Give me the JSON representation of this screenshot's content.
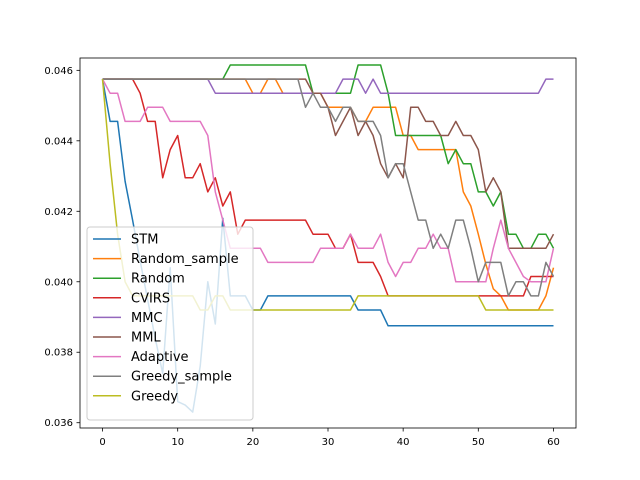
{
  "chart_data": {
    "type": "line",
    "title": "",
    "xlabel": "",
    "ylabel": "",
    "xlim": [
      -3,
      63
    ],
    "ylim": [
      0.03585,
      0.04635
    ],
    "xticks": [
      0,
      10,
      20,
      30,
      40,
      50,
      60
    ],
    "yticks": [
      0.036,
      0.038,
      0.04,
      0.042,
      0.044,
      0.046
    ],
    "ytick_labels": [
      "0.036",
      "0.038",
      "0.040",
      "0.042",
      "0.044",
      "0.046"
    ],
    "legend_position": "lower-left",
    "x": [
      0,
      1,
      2,
      3,
      4,
      5,
      6,
      7,
      8,
      9,
      10,
      11,
      12,
      13,
      14,
      15,
      16,
      17,
      18,
      19,
      20,
      21,
      22,
      23,
      24,
      25,
      26,
      27,
      28,
      29,
      30,
      31,
      32,
      33,
      34,
      35,
      36,
      37,
      38,
      39,
      40,
      41,
      42,
      43,
      44,
      45,
      46,
      47,
      48,
      49,
      50,
      51,
      52,
      53,
      54,
      55,
      56,
      57,
      58,
      59,
      60
    ],
    "series": [
      {
        "name": "STM",
        "color": "#1f77b4",
        "values": [
          0.04575,
          0.04455,
          0.04455,
          0.04285,
          0.04175,
          0.0406,
          0.0395,
          0.0384,
          0.0374,
          0.0404,
          0.0366,
          0.0365,
          0.0363,
          0.0376,
          0.04,
          0.0388,
          0.0418,
          0.0396,
          0.0396,
          0.0396,
          0.0392,
          0.0392,
          0.0396,
          0.0396,
          0.0396,
          0.0396,
          0.0396,
          0.0396,
          0.0396,
          0.0396,
          0.0396,
          0.0396,
          0.0396,
          0.0396,
          0.0392,
          0.0392,
          0.0392,
          0.0392,
          0.03875,
          0.03875,
          0.03875,
          0.03875,
          0.03875,
          0.03875,
          0.03875,
          0.03875,
          0.03875,
          0.03875,
          0.03875,
          0.03875,
          0.03875,
          0.03875,
          0.03875,
          0.03875,
          0.03875,
          0.03875,
          0.03875,
          0.03875,
          0.03875,
          0.03875,
          0.03875
        ]
      },
      {
        "name": "Random_sample",
        "color": "#ff7f0e",
        "values": [
          0.04575,
          0.04575,
          0.04575,
          0.04575,
          0.04575,
          0.04575,
          0.04575,
          0.04575,
          0.04575,
          0.04575,
          0.04575,
          0.04575,
          0.04575,
          0.04575,
          0.04575,
          0.04575,
          0.04575,
          0.04575,
          0.04575,
          0.04575,
          0.04535,
          0.04535,
          0.04575,
          0.04575,
          0.04535,
          0.04535,
          0.04535,
          0.04535,
          0.04535,
          0.04535,
          0.04495,
          0.04495,
          0.04495,
          0.04495,
          0.04455,
          0.04455,
          0.04495,
          0.04495,
          0.04495,
          0.04495,
          0.04415,
          0.04415,
          0.04375,
          0.04375,
          0.04375,
          0.04375,
          0.04375,
          0.04375,
          0.04255,
          0.04215,
          0.04135,
          0.0405,
          0.0398,
          0.0396,
          0.0392,
          0.0392,
          0.0392,
          0.0392,
          0.0392,
          0.0396,
          0.0404
        ]
      },
      {
        "name": "Random",
        "color": "#2ca02c",
        "values": [
          0.04575,
          0.04575,
          0.04575,
          0.04575,
          0.04575,
          0.04575,
          0.04575,
          0.04575,
          0.04575,
          0.04575,
          0.04575,
          0.04575,
          0.04575,
          0.04575,
          0.04575,
          0.04575,
          0.04575,
          0.04615,
          0.04615,
          0.04615,
          0.04615,
          0.04615,
          0.04615,
          0.04615,
          0.04615,
          0.04615,
          0.04615,
          0.04615,
          0.04535,
          0.04535,
          0.04535,
          0.04535,
          0.04535,
          0.04535,
          0.04615,
          0.04615,
          0.04615,
          0.04615,
          0.04535,
          0.04415,
          0.04415,
          0.04415,
          0.04415,
          0.04415,
          0.04415,
          0.04415,
          0.04335,
          0.04375,
          0.04335,
          0.04335,
          0.04255,
          0.04255,
          0.04215,
          0.04255,
          0.04135,
          0.04135,
          0.04095,
          0.04095,
          0.04135,
          0.04135,
          0.04095
        ]
      },
      {
        "name": "CVIRS",
        "color": "#d62728",
        "values": [
          0.04575,
          0.04575,
          0.04575,
          0.04575,
          0.04575,
          0.04535,
          0.04455,
          0.04455,
          0.04295,
          0.04375,
          0.04415,
          0.04295,
          0.04295,
          0.04335,
          0.04255,
          0.04295,
          0.04215,
          0.04255,
          0.04135,
          0.04175,
          0.04175,
          0.04175,
          0.04175,
          0.04175,
          0.04175,
          0.04175,
          0.04175,
          0.04175,
          0.04135,
          0.04135,
          0.04135,
          0.04095,
          0.04095,
          0.04135,
          0.04055,
          0.04055,
          0.04055,
          0.04015,
          0.0396,
          0.0396,
          0.0396,
          0.0396,
          0.0396,
          0.0396,
          0.0396,
          0.0396,
          0.0396,
          0.0396,
          0.0396,
          0.0396,
          0.0396,
          0.0396,
          0.0396,
          0.0396,
          0.0396,
          0.0396,
          0.0396,
          0.04015,
          0.04015,
          0.04015,
          0.04015
        ]
      },
      {
        "name": "MMC",
        "color": "#9467bd",
        "values": [
          0.04575,
          0.04575,
          0.04575,
          0.04575,
          0.04575,
          0.04575,
          0.04575,
          0.04575,
          0.04575,
          0.04575,
          0.04575,
          0.04575,
          0.04575,
          0.04575,
          0.04575,
          0.04535,
          0.04535,
          0.04535,
          0.04535,
          0.04535,
          0.04535,
          0.04535,
          0.04535,
          0.04535,
          0.04535,
          0.04535,
          0.04535,
          0.04535,
          0.04535,
          0.04535,
          0.04535,
          0.04535,
          0.04575,
          0.04575,
          0.04575,
          0.04535,
          0.04575,
          0.04535,
          0.04535,
          0.04535,
          0.04535,
          0.04535,
          0.04535,
          0.04535,
          0.04535,
          0.04535,
          0.04535,
          0.04535,
          0.04535,
          0.04535,
          0.04535,
          0.04535,
          0.04535,
          0.04535,
          0.04535,
          0.04535,
          0.04535,
          0.04535,
          0.04535,
          0.04575,
          0.04575
        ]
      },
      {
        "name": "MML",
        "color": "#8c564b",
        "values": [
          0.04575,
          0.04575,
          0.04575,
          0.04575,
          0.04575,
          0.04575,
          0.04575,
          0.04575,
          0.04575,
          0.04575,
          0.04575,
          0.04575,
          0.04575,
          0.04575,
          0.04575,
          0.04575,
          0.04575,
          0.04575,
          0.04575,
          0.04575,
          0.04575,
          0.04575,
          0.04575,
          0.04575,
          0.04575,
          0.04575,
          0.04575,
          0.04575,
          0.04535,
          0.04535,
          0.04495,
          0.04415,
          0.04455,
          0.04495,
          0.04415,
          0.04455,
          0.04415,
          0.04335,
          0.04295,
          0.04335,
          0.04295,
          0.04495,
          0.04495,
          0.04455,
          0.04455,
          0.04415,
          0.04415,
          0.04455,
          0.04415,
          0.04415,
          0.04375,
          0.04255,
          0.04295,
          0.04255,
          0.04095,
          0.04095,
          0.04095,
          0.04095,
          0.04095,
          0.04095,
          0.04135
        ]
      },
      {
        "name": "Adaptive",
        "color": "#e377c2",
        "values": [
          0.04575,
          0.04535,
          0.04535,
          0.04455,
          0.04455,
          0.04455,
          0.04495,
          0.04495,
          0.04495,
          0.04455,
          0.04455,
          0.04455,
          0.04455,
          0.04455,
          0.04415,
          0.04255,
          0.04175,
          0.04095,
          0.04095,
          0.04095,
          0.04095,
          0.04095,
          0.04055,
          0.04055,
          0.04055,
          0.04055,
          0.04055,
          0.04055,
          0.04055,
          0.04095,
          0.04095,
          0.04095,
          0.04095,
          0.04135,
          0.04095,
          0.04095,
          0.04095,
          0.04135,
          0.04055,
          0.04015,
          0.04055,
          0.04055,
          0.04095,
          0.04095,
          0.04135,
          0.04095,
          0.04095,
          0.04,
          0.04,
          0.04,
          0.04,
          0.04,
          0.04095,
          0.04175,
          0.04095,
          0.04055,
          0.04015,
          0.04,
          0.04,
          0.04,
          0.04095
        ]
      },
      {
        "name": "Greedy_sample",
        "color": "#7f7f7f",
        "values": [
          0.04575,
          0.04575,
          0.04575,
          0.04575,
          0.04575,
          0.04575,
          0.04575,
          0.04575,
          0.04575,
          0.04575,
          0.04575,
          0.04575,
          0.04575,
          0.04575,
          0.04575,
          0.04575,
          0.04575,
          0.04575,
          0.04575,
          0.04575,
          0.04575,
          0.04575,
          0.04575,
          0.04575,
          0.04575,
          0.04575,
          0.04575,
          0.04495,
          0.04535,
          0.04495,
          0.04495,
          0.04455,
          0.04495,
          0.04495,
          0.04455,
          0.04455,
          0.04455,
          0.04415,
          0.04295,
          0.04335,
          0.04335,
          0.04255,
          0.04175,
          0.04175,
          0.04095,
          0.04135,
          0.04095,
          0.04175,
          0.04175,
          0.04095,
          0.04,
          0.04055,
          0.04055,
          0.04055,
          0.0396,
          0.04,
          0.04,
          0.0396,
          0.0396,
          0.04055,
          0.04015
        ]
      },
      {
        "name": "Greedy",
        "color": "#bcbd22",
        "values": [
          0.04575,
          0.04335,
          0.04135,
          0.04,
          0.0396,
          0.0396,
          0.0396,
          0.0396,
          0.0396,
          0.0396,
          0.0396,
          0.0396,
          0.0396,
          0.0392,
          0.0392,
          0.0396,
          0.0396,
          0.0392,
          0.0392,
          0.0392,
          0.0392,
          0.0392,
          0.0392,
          0.0392,
          0.0392,
          0.0392,
          0.0392,
          0.0392,
          0.0392,
          0.0392,
          0.0392,
          0.0392,
          0.0392,
          0.0392,
          0.0396,
          0.0396,
          0.0396,
          0.0396,
          0.0396,
          0.0396,
          0.0396,
          0.0396,
          0.0396,
          0.0396,
          0.0396,
          0.0396,
          0.0396,
          0.0396,
          0.0396,
          0.0396,
          0.0396,
          0.0392,
          0.0392,
          0.0392,
          0.0392,
          0.0392,
          0.0392,
          0.0392,
          0.0392,
          0.0392,
          0.0392
        ]
      }
    ]
  }
}
